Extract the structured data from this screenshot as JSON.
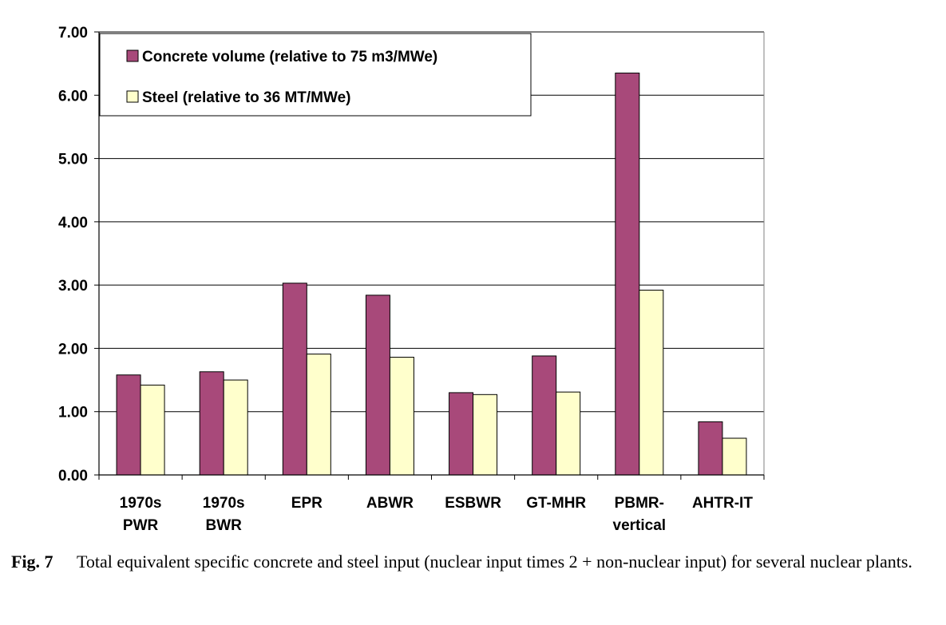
{
  "chart_data": {
    "type": "bar",
    "categories": [
      [
        "1970s",
        "PWR"
      ],
      [
        "1970s",
        "BWR"
      ],
      [
        "EPR"
      ],
      [
        "ABWR"
      ],
      [
        "ESBWR"
      ],
      [
        "GT-MHR"
      ],
      [
        "PBMR-",
        "vertical"
      ],
      [
        "AHTR-IT"
      ]
    ],
    "series": [
      {
        "name": "Concrete volume (relative to 75 m3/MWe)",
        "color": "#A8497A",
        "values": [
          1.58,
          1.63,
          3.03,
          2.84,
          1.3,
          1.88,
          6.35,
          0.84
        ]
      },
      {
        "name": "Steel (relative to 36 MT/MWe)",
        "color": "#FFFFCC",
        "values": [
          1.42,
          1.5,
          1.91,
          1.86,
          1.27,
          1.31,
          2.92,
          0.58
        ]
      }
    ],
    "ylim": [
      0,
      7
    ],
    "yticks": [
      "0.00",
      "1.00",
      "2.00",
      "3.00",
      "4.00",
      "5.00",
      "6.00",
      "7.00"
    ],
    "grid": true,
    "legend": "top-left"
  },
  "caption": {
    "label": "Fig. 7",
    "text": "Total equivalent specific concrete and steel input (nuclear input times 2 + non-nuclear input) for several nuclear plants."
  }
}
